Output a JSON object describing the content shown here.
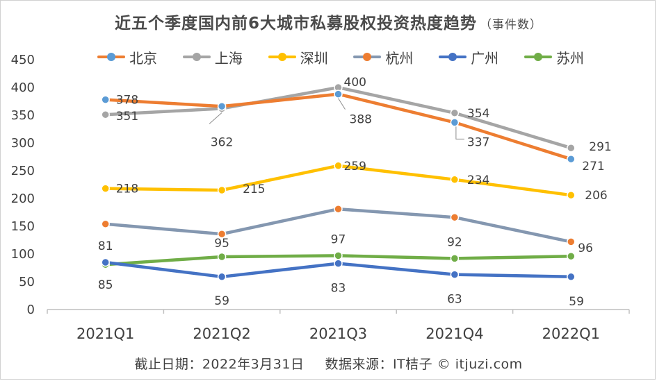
{
  "chart_data": {
    "type": "line",
    "title": "近五个季度国内前6大城市私募股权投资热度趋势",
    "subtitle": "（事件数）",
    "categories": [
      "2021Q1",
      "2021Q2",
      "2021Q3",
      "2021Q4",
      "2022Q1"
    ],
    "ylim": [
      0,
      450
    ],
    "yticks": [
      0,
      50,
      100,
      150,
      200,
      250,
      300,
      350,
      400,
      450
    ],
    "xlabel": "",
    "ylabel": "",
    "legend_position": "top",
    "series": [
      {
        "name": "北京",
        "color": "#ED7D31",
        "marker_color": "#5B9BD5",
        "values": [
          378,
          366,
          388,
          337,
          271
        ],
        "labels": [
          "378",
          "",
          "388",
          "337",
          "271"
        ]
      },
      {
        "name": "上海",
        "color": "#A5A5A5",
        "marker_color": "#A5A5A5",
        "values": [
          351,
          362,
          400,
          354,
          291
        ],
        "labels": [
          "351",
          "362",
          "400",
          "354",
          "291"
        ]
      },
      {
        "name": "深圳",
        "color": "#FFC000",
        "marker_color": "#FFC000",
        "values": [
          218,
          215,
          259,
          234,
          206
        ],
        "labels": [
          "218",
          "215",
          "259",
          "234",
          "206"
        ]
      },
      {
        "name": "杭州",
        "color": "#8497B0",
        "marker_color": "#ED7D31",
        "values": [
          154,
          136,
          181,
          166,
          122
        ],
        "labels": [
          "",
          "",
          "",
          "",
          ""
        ]
      },
      {
        "name": "广州",
        "color": "#4472C4",
        "marker_color": "#4472C4",
        "values": [
          85,
          59,
          83,
          63,
          59
        ],
        "labels": [
          "85",
          "59",
          "83",
          "63",
          "59"
        ]
      },
      {
        "name": "苏州",
        "color": "#70AD47",
        "marker_color": "#70AD47",
        "values": [
          81,
          95,
          97,
          92,
          96
        ],
        "labels": [
          "81",
          "95",
          "97",
          "92",
          "96"
        ]
      }
    ]
  },
  "footer": {
    "date_text": "截止日期：2022年3月31日",
    "source_text": "数据来源：IT桔子 © itjuzi.com"
  }
}
